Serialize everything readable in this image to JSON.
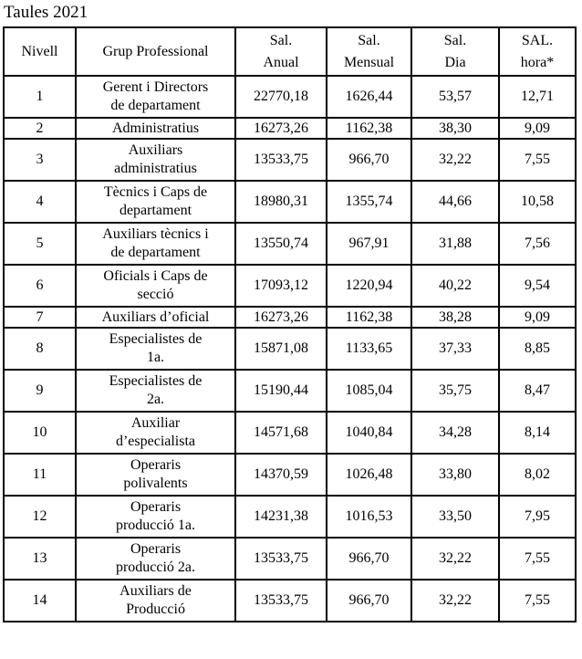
{
  "title": "Taules 2021",
  "colors": {
    "text": "#000000",
    "border": "#000000",
    "background": "#ffffff"
  },
  "table": {
    "headers": [
      {
        "key": "nivell",
        "label": "Nivell"
      },
      {
        "key": "grup",
        "label": "Grup Professional"
      },
      {
        "key": "anual",
        "label": "Sal.\nAnual"
      },
      {
        "key": "mensual",
        "label": "Sal.\nMensual"
      },
      {
        "key": "dia",
        "label": "Sal.\nDia"
      },
      {
        "key": "hora",
        "label": "SAL.\nhora*"
      }
    ],
    "rows": [
      {
        "nivell": "1",
        "grup": "Gerent i Directors\nde departament",
        "anual": "22770,18",
        "mensual": "1626,44",
        "dia": "53,57",
        "hora": "12,71"
      },
      {
        "nivell": "2",
        "grup": "Administratius",
        "anual": "16273,26",
        "mensual": "1162,38",
        "dia": "38,30",
        "hora": "9,09"
      },
      {
        "nivell": "3",
        "grup": "Auxiliars\nadministratius",
        "anual": "13533,75",
        "mensual": "966,70",
        "dia": "32,22",
        "hora": "7,55"
      },
      {
        "nivell": "4",
        "grup": "Tècnics i Caps de\ndepartament",
        "anual": "18980,31",
        "mensual": "1355,74",
        "dia": "44,66",
        "hora": "10,58"
      },
      {
        "nivell": "5",
        "grup": "Auxiliars tècnics i\nde departament",
        "anual": "13550,74",
        "mensual": "967,91",
        "dia": "31,88",
        "hora": "7,56"
      },
      {
        "nivell": "6",
        "grup": "Oficials i Caps de\nsecció",
        "anual": "17093,12",
        "mensual": "1220,94",
        "dia": "40,22",
        "hora": "9,54"
      },
      {
        "nivell": "7",
        "grup": "Auxiliars d’oficial",
        "anual": "16273,26",
        "mensual": "1162,38",
        "dia": "38,28",
        "hora": "9,09"
      },
      {
        "nivell": "8",
        "grup": "Especialistes de\n1a.",
        "anual": "15871,08",
        "mensual": "1133,65",
        "dia": "37,33",
        "hora": "8,85"
      },
      {
        "nivell": "9",
        "grup": "Especialistes de\n2a.",
        "anual": "15190,44",
        "mensual": "1085,04",
        "dia": "35,75",
        "hora": "8,47"
      },
      {
        "nivell": "10",
        "grup": "Auxiliar\nd’especialista",
        "anual": "14571,68",
        "mensual": "1040,84",
        "dia": "34,28",
        "hora": "8,14"
      },
      {
        "nivell": "11",
        "grup": "Operaris\npolivalents",
        "anual": "14370,59",
        "mensual": "1026,48",
        "dia": "33,80",
        "hora": "8,02"
      },
      {
        "nivell": "12",
        "grup": "Operaris\nproducció 1a.",
        "anual": "14231,38",
        "mensual": "1016,53",
        "dia": "33,50",
        "hora": "7,95"
      },
      {
        "nivell": "13",
        "grup": "Operaris\nproducció 2a.",
        "anual": "13533,75",
        "mensual": "966,70",
        "dia": "32,22",
        "hora": "7,55"
      },
      {
        "nivell": "14",
        "grup": "Auxiliars de\nProducció",
        "anual": "13533,75",
        "mensual": "966,70",
        "dia": "32,22",
        "hora": "7,55"
      }
    ]
  }
}
